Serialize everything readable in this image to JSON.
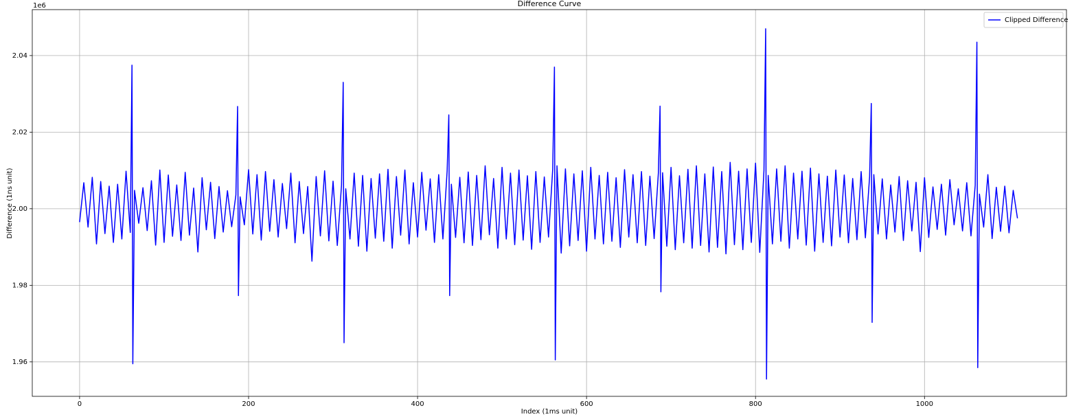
{
  "chart_data": {
    "type": "line",
    "title": "Difference Curve",
    "xlabel": "Index (1ms unit)",
    "ylabel": "Difference (1ns unit)",
    "y_offset_label": "1e6",
    "x": [
      0,
      5,
      10,
      15,
      20,
      25,
      30,
      35,
      40,
      45,
      50,
      55,
      60,
      62,
      63,
      65,
      70,
      75,
      80,
      85,
      90,
      95,
      100,
      105,
      110,
      115,
      120,
      125,
      130,
      135,
      140,
      145,
      150,
      155,
      160,
      165,
      170,
      175,
      180,
      185,
      187,
      188,
      190,
      195,
      200,
      205,
      210,
      215,
      220,
      225,
      230,
      235,
      240,
      245,
      250,
      255,
      260,
      265,
      270,
      275,
      280,
      285,
      290,
      295,
      300,
      305,
      310,
      312,
      313,
      315,
      320,
      325,
      330,
      335,
      340,
      345,
      350,
      355,
      360,
      365,
      370,
      375,
      380,
      385,
      390,
      395,
      400,
      405,
      410,
      415,
      420,
      425,
      430,
      435,
      437,
      438,
      440,
      445,
      450,
      455,
      460,
      465,
      470,
      475,
      480,
      485,
      490,
      495,
      500,
      505,
      510,
      515,
      520,
      525,
      530,
      535,
      540,
      545,
      550,
      555,
      560,
      562,
      563,
      565,
      570,
      575,
      580,
      585,
      590,
      595,
      600,
      605,
      610,
      615,
      620,
      625,
      630,
      635,
      640,
      645,
      650,
      655,
      660,
      665,
      670,
      675,
      680,
      685,
      687,
      688,
      690,
      695,
      700,
      705,
      710,
      715,
      720,
      725,
      730,
      735,
      740,
      745,
      750,
      755,
      760,
      765,
      770,
      775,
      780,
      785,
      790,
      795,
      800,
      805,
      810,
      812,
      813,
      815,
      820,
      825,
      830,
      835,
      840,
      845,
      850,
      855,
      860,
      865,
      870,
      875,
      880,
      885,
      890,
      895,
      900,
      905,
      910,
      915,
      920,
      925,
      930,
      935,
      937,
      938,
      940,
      945,
      950,
      955,
      960,
      965,
      970,
      975,
      980,
      985,
      990,
      995,
      1000,
      1005,
      1010,
      1015,
      1020,
      1025,
      1030,
      1035,
      1040,
      1045,
      1050,
      1055,
      1060,
      1062,
      1063,
      1065,
      1070,
      1075,
      1080,
      1085,
      1090,
      1095,
      1100,
      1105,
      1110
    ],
    "series": [
      {
        "name": "Clipped Difference",
        "color": "#0000ff",
        "values": [
          1.9965,
          2.0068,
          1.9952,
          2.0082,
          1.9908,
          2.0071,
          1.9935,
          2.0059,
          1.9912,
          2.0064,
          1.9921,
          2.0098,
          1.9938,
          2.0375,
          1.9595,
          2.0048,
          1.9962,
          2.0055,
          1.9943,
          2.0073,
          1.9905,
          2.0101,
          1.9912,
          2.0088,
          1.9928,
          2.0062,
          1.9917,
          2.0095,
          1.9931,
          2.0054,
          1.9887,
          2.0081,
          1.9945,
          2.0069,
          1.9922,
          2.0058,
          1.9939,
          2.0047,
          1.9953,
          2.0036,
          2.0267,
          1.9773,
          2.0031,
          1.9958,
          2.0102,
          1.9934,
          2.0089,
          1.9918,
          2.0097,
          1.9941,
          2.0076,
          1.9926,
          2.0066,
          1.9948,
          2.0093,
          1.9911,
          2.0071,
          1.9935,
          2.0058,
          1.9863,
          2.0084,
          1.9929,
          2.0099,
          1.9916,
          2.0072,
          1.9904,
          2.0061,
          2.033,
          1.965,
          2.0052,
          1.9921,
          2.0093,
          1.9902,
          2.0087,
          1.9889,
          2.0079,
          1.9923,
          2.0091,
          1.9915,
          2.0103,
          1.9897,
          2.0084,
          1.9931,
          2.0101,
          1.9908,
          2.0068,
          1.9926,
          2.0095,
          1.9944,
          2.0078,
          1.9912,
          2.0089,
          1.9921,
          2.0098,
          2.0245,
          1.9773,
          2.0064,
          1.9925,
          2.0082,
          1.9911,
          2.0096,
          1.9904,
          2.0087,
          1.9919,
          2.0112,
          1.9932,
          2.0079,
          1.9897,
          2.0108,
          1.9921,
          2.0093,
          1.9906,
          2.0101,
          1.9918,
          2.0086,
          1.9894,
          2.0097,
          1.9912,
          2.0083,
          1.9926,
          2.0104,
          2.037,
          1.9605,
          2.0112,
          1.9884,
          2.0104,
          1.9903,
          2.0091,
          1.9917,
          2.0099,
          1.9889,
          2.0108,
          1.9921,
          2.0087,
          1.9908,
          2.0095,
          1.9915,
          2.0081,
          1.9899,
          2.0102,
          1.9926,
          2.0089,
          1.9911,
          2.0097,
          1.9904,
          2.0085,
          1.9922,
          2.0093,
          2.0268,
          1.9783,
          2.0094,
          1.9902,
          2.0108,
          1.9893,
          2.0086,
          1.9911,
          2.0103,
          1.9897,
          2.0112,
          1.9904,
          2.0091,
          1.9887,
          2.0109,
          1.9899,
          2.0097,
          1.9882,
          2.0121,
          1.9906,
          2.0098,
          1.9893,
          2.0104,
          1.9912,
          2.0119,
          1.9886,
          2.0101,
          2.047,
          1.9555,
          2.0087,
          1.9908,
          2.0104,
          1.9915,
          2.0112,
          1.9897,
          2.0093,
          1.9921,
          2.0098,
          1.9905,
          2.0106,
          1.9889,
          2.0091,
          1.9912,
          2.0085,
          1.9903,
          2.0101,
          1.9926,
          2.0088,
          1.9911,
          2.0079,
          1.9919,
          2.0097,
          1.9924,
          2.0083,
          2.0275,
          1.9703,
          2.0089,
          1.9934,
          2.0078,
          1.9921,
          2.0062,
          1.9939,
          2.0084,
          1.9917,
          2.0073,
          1.9942,
          2.0069,
          1.9888,
          2.0081,
          1.9925,
          2.0057,
          1.9946,
          2.0064,
          1.9931,
          2.0076,
          1.9958,
          2.0052,
          1.9942,
          2.0068,
          1.9929,
          2.0061,
          2.0435,
          1.9585,
          2.0038,
          1.9952,
          2.0089,
          1.9922,
          2.0056,
          1.9941,
          2.0059,
          1.9937,
          2.0048,
          1.9975
        ]
      }
    ],
    "xlim": [
      -56,
      1168
    ],
    "ylim": [
      1.951,
      2.052
    ],
    "xticks": [
      0,
      200,
      400,
      600,
      800,
      1000
    ],
    "yticks": [
      {
        "value": 1.96,
        "label": "1.96"
      },
      {
        "value": 1.98,
        "label": "1.98"
      },
      {
        "value": 2,
        "label": "2.00"
      },
      {
        "value": 2.02,
        "label": "2.02"
      },
      {
        "value": 2.04,
        "label": "2.04"
      }
    ],
    "grid": true,
    "legend": "upper right"
  }
}
